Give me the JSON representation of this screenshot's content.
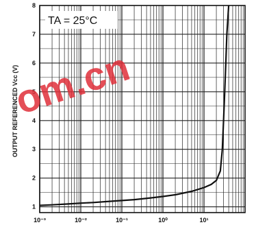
{
  "chart_data": {
    "type": "line",
    "title": "",
    "xlabel": "",
    "ylabel": "OUTPUT REFERENCED Vcc (V)",
    "x_scale": "log",
    "xlim": [
      0.001,
      100
    ],
    "ylim": [
      0.8,
      8
    ],
    "grid": true,
    "annotation": "TA = 25°C",
    "x_tick_labels": [
      "10⁻³",
      "10⁻²",
      "10⁻¹",
      "10⁰",
      "10¹"
    ],
    "x_tick_values": [
      0.001,
      0.01,
      0.1,
      1,
      10
    ],
    "y_tick_labels": [
      "1",
      "2",
      "3",
      "4",
      "5",
      "6",
      "7",
      "8"
    ],
    "y_tick_values": [
      1,
      2,
      3,
      4,
      5,
      6,
      7,
      8
    ],
    "series": [
      {
        "x": [
          0.001,
          0.002,
          0.005,
          0.01,
          0.02,
          0.05,
          0.1,
          0.2,
          0.5,
          1,
          2,
          5,
          10,
          15,
          20,
          25,
          28,
          30,
          32,
          34,
          36,
          40
        ],
        "y": [
          1.05,
          1.07,
          1.1,
          1.13,
          1.15,
          1.19,
          1.22,
          1.25,
          1.31,
          1.36,
          1.42,
          1.54,
          1.67,
          1.78,
          1.92,
          2.25,
          3.0,
          4.0,
          5.0,
          6.0,
          7.0,
          8.0
        ]
      }
    ]
  },
  "watermark": "om.cn",
  "watermark_color": "#e0303a"
}
